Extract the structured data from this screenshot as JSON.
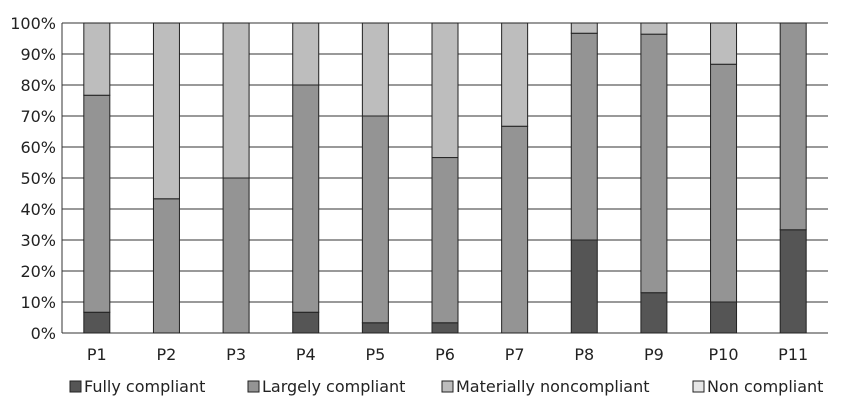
{
  "chart_data": {
    "type": "bar",
    "stacked": true,
    "categories": [
      "P1",
      "P2",
      "P3",
      "P4",
      "P5",
      "P6",
      "P7",
      "P8",
      "P9",
      "P10",
      "P11"
    ],
    "series": [
      {
        "name": "Fully compliant",
        "color": "#555555",
        "values": [
          6.7,
          0,
          0,
          6.7,
          3.3,
          3.3,
          0,
          30.0,
          13.0,
          10.0,
          33.3
        ]
      },
      {
        "name": "Largely compliant",
        "color": "#949494",
        "values": [
          70.0,
          43.3,
          50.0,
          73.3,
          66.7,
          53.3,
          66.7,
          66.7,
          83.4,
          76.7,
          66.7
        ]
      },
      {
        "name": "Materially noncompliant",
        "color": "#bdbdbd",
        "values": [
          23.3,
          56.7,
          50.0,
          20.0,
          30.0,
          43.4,
          33.3,
          3.3,
          3.6,
          13.3,
          0
        ]
      },
      {
        "name": "Non compliant",
        "color": "#e6e6e6",
        "values": [
          0,
          0,
          0,
          0,
          0,
          0,
          0,
          0,
          0,
          0,
          0
        ]
      }
    ],
    "yticks": [
      "0%",
      "10%",
      "20%",
      "30%",
      "40%",
      "50%",
      "60%",
      "70%",
      "80%",
      "90%",
      "100%"
    ],
    "ylim": [
      0,
      100
    ],
    "grid": true,
    "legend_position": "bottom",
    "title": "",
    "xlabel": "",
    "ylabel": ""
  }
}
